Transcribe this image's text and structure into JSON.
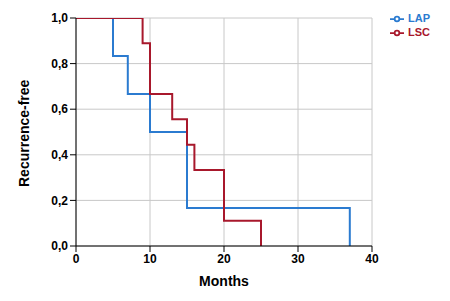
{
  "chart_data": {
    "type": "step",
    "x_label": "Months",
    "y_label": "Recurrence-free",
    "xlim": [
      0,
      40
    ],
    "xticks": [
      0,
      10,
      20,
      30,
      40
    ],
    "ylim": [
      0,
      1
    ],
    "yticks": [
      {
        "value": 0,
        "label": "0,0"
      },
      {
        "value": 0.2,
        "label": "0,2"
      },
      {
        "value": 0.4,
        "label": "0,4"
      },
      {
        "value": 0.6,
        "label": "0,6"
      },
      {
        "value": 0.8,
        "label": "0,8"
      },
      {
        "value": 1,
        "label": "1,0"
      }
    ],
    "grid": true,
    "legend": "top-right",
    "series": [
      {
        "name": "LAP",
        "color": "#2b7bd0",
        "x": [
          0,
          5,
          7,
          10,
          15,
          37
        ],
        "values": [
          1,
          0.833,
          0.667,
          0.5,
          0.167,
          0
        ]
      },
      {
        "name": "LSC",
        "color": "#a8182c",
        "x": [
          0,
          9,
          10,
          13,
          15,
          16,
          20,
          25
        ],
        "values": [
          1,
          0.889,
          0.667,
          0.556,
          0.444,
          0.333,
          0.111,
          0
        ]
      }
    ]
  }
}
